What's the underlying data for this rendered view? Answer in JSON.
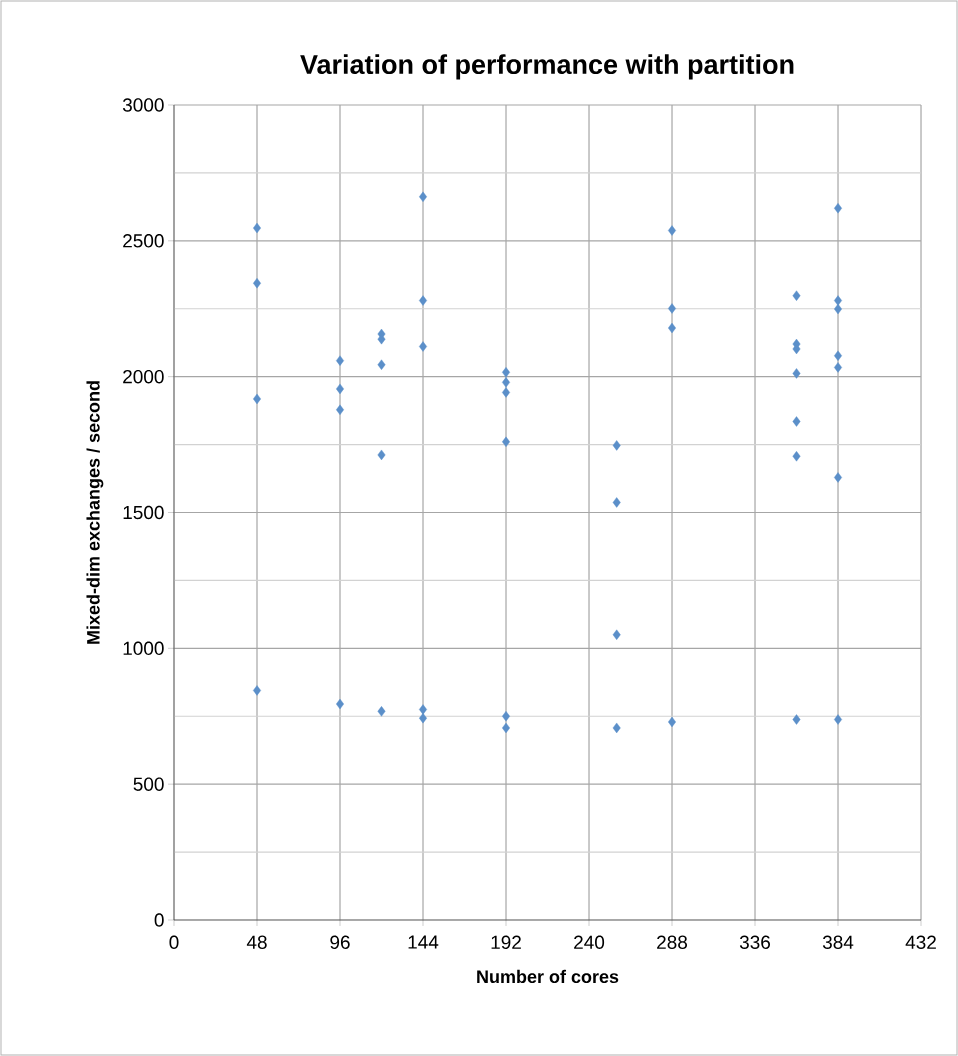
{
  "chart_data": {
    "type": "scatter",
    "title": "Variation of performance with partition",
    "xlabel": "Number of cores",
    "ylabel": "Mixed-dim exchanges  / second",
    "x": [
      48,
      48,
      48,
      48,
      96,
      96,
      96,
      96,
      120,
      120,
      120,
      120,
      120,
      144,
      144,
      144,
      144,
      144,
      192,
      192,
      192,
      192,
      192,
      192,
      256,
      256,
      256,
      256,
      288,
      288,
      288,
      288,
      360,
      360,
      360,
      360,
      360,
      360,
      360,
      384,
      384,
      384,
      384,
      384,
      384,
      384
    ],
    "values": [
      2547,
      2344,
      1918,
      845,
      2059,
      1955,
      1878,
      795,
      2157,
      2138,
      2044,
      1712,
      768,
      2662,
      2280,
      2111,
      775,
      743,
      2016,
      1979,
      1942,
      1760,
      750,
      707,
      1747,
      1537,
      1050,
      707,
      2538,
      2251,
      2179,
      729,
      2298,
      2120,
      2102,
      2012,
      1835,
      1707,
      738,
      2620,
      2280,
      2249,
      2077,
      2034,
      1629,
      738
    ],
    "color": "#5b8fc9",
    "marker": "diamond",
    "xlim": [
      0,
      432
    ],
    "xticks": [
      0,
      48,
      96,
      144,
      192,
      240,
      288,
      336,
      384,
      432
    ],
    "ylim": [
      0,
      3000
    ],
    "yticks": [
      0,
      500,
      1000,
      1500,
      2000,
      2500,
      3000
    ],
    "grid": true
  }
}
